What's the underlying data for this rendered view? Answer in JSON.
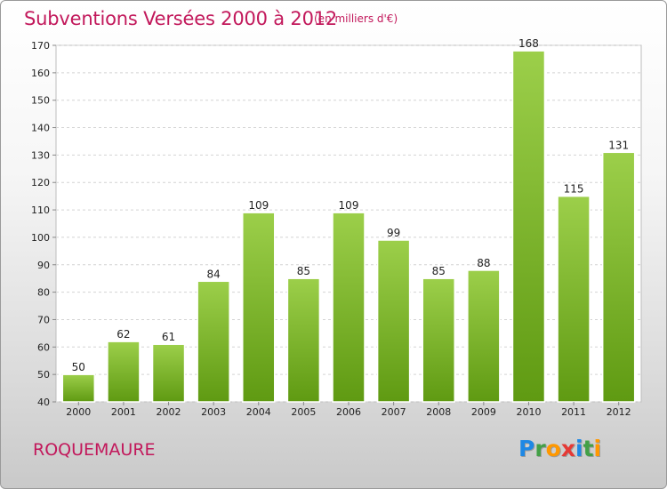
{
  "header": {
    "title": "Subventions Versées 2000 à 2012",
    "subtitle": "(en milliers d'€)"
  },
  "footer": {
    "commune": "ROQUEMAURE",
    "logo_letters": [
      "P",
      "r",
      "o",
      "x",
      "i",
      "t",
      "i"
    ],
    "logo_colors": [
      "#1e88e5",
      "#43a047",
      "#ff9800",
      "#e53935",
      "#1e88e5",
      "#43a047",
      "#ff9800"
    ]
  },
  "colors": {
    "accent": "#c2185b",
    "bar_top": "#9ccf4a",
    "bar_bottom": "#5f9a12"
  },
  "chart_data": {
    "type": "bar",
    "title": "Subventions Versées 2000 à 2012",
    "subtitle": "(en milliers d'€)",
    "categories": [
      "2000",
      "2001",
      "2002",
      "2003",
      "2004",
      "2005",
      "2006",
      "2007",
      "2008",
      "2009",
      "2010",
      "2011",
      "2012"
    ],
    "values": [
      50,
      62,
      61,
      84,
      109,
      85,
      109,
      99,
      85,
      88,
      168,
      115,
      131
    ],
    "ylim": [
      40,
      170
    ],
    "yticks": [
      40,
      50,
      60,
      70,
      80,
      90,
      100,
      110,
      120,
      130,
      140,
      150,
      160,
      170
    ],
    "grid": true,
    "data_labels": true
  }
}
